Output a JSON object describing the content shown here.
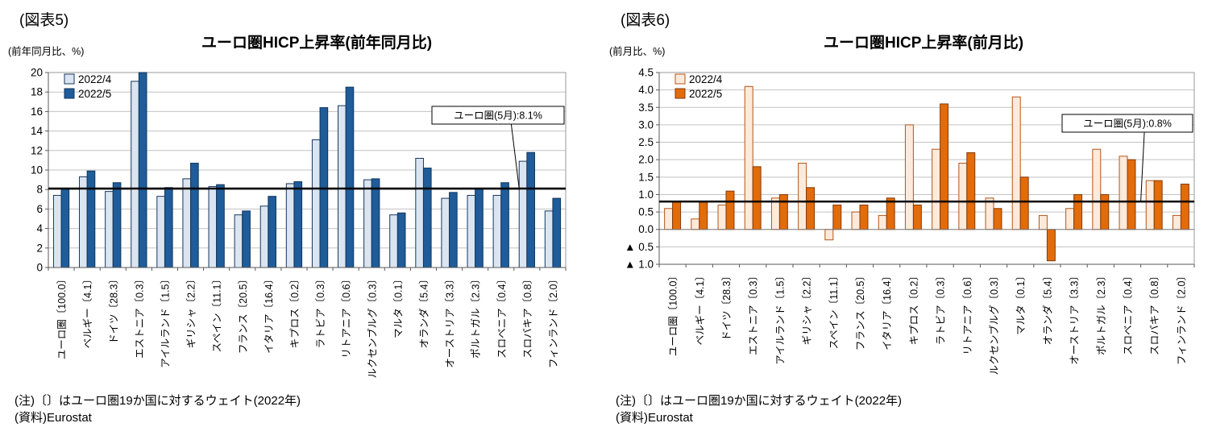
{
  "page": {
    "background": "#ffffff"
  },
  "chart_data": [
    {
      "type": "bar",
      "figure_label": "(図表5)",
      "title": "ユーロ圏HICP上昇率(前年同月比)",
      "ylabel_unit": "(前年同月比、%)",
      "xlabel": "",
      "grid": true,
      "legend_position": "top-left",
      "categories": [
        "ユーロ圏〔100.0〕",
        "ベルギー〔4.1〕",
        "ドイツ〔28.3〕",
        "エストニア〔0.3〕",
        "アイルランド〔1.5〕",
        "ギリシャ〔2.2〕",
        "スペイン〔11.1〕",
        "フランス〔20.5〕",
        "イタリア〔16.4〕",
        "キプロス〔0.2〕",
        "ラトビア〔0.3〕",
        "リトアニア〔0.6〕",
        "ルクセンブルグ〔0.3〕",
        "マルタ〔0.1〕",
        "オランダ〔5.4〕",
        "オーストリア〔3.3〕",
        "ポルトガル〔2.3〕",
        "スロベニア〔0.4〕",
        "スロバキア〔0.8〕",
        "フィンランド〔2.0〕"
      ],
      "series": [
        {
          "name": "2022/4",
          "color": "#dbe5f1",
          "border": "#17375e",
          "values": [
            7.4,
            9.3,
            7.8,
            19.1,
            7.3,
            9.1,
            8.3,
            5.4,
            6.3,
            8.6,
            13.1,
            16.6,
            9.0,
            5.4,
            11.2,
            7.1,
            7.4,
            7.4,
            10.9,
            5.8
          ]
        },
        {
          "name": "2022/5",
          "color": "#1f5c99",
          "border": "#10365c",
          "values": [
            8.1,
            9.9,
            8.7,
            20.1,
            8.2,
            10.7,
            8.5,
            5.8,
            7.3,
            8.8,
            16.4,
            18.5,
            9.1,
            5.6,
            10.2,
            7.7,
            8.1,
            8.7,
            11.8,
            7.1
          ]
        }
      ],
      "ylim": [
        0,
        20
      ],
      "ytick_step": 2,
      "reference_line": {
        "value": 8.1,
        "color": "#000000"
      },
      "annotation": {
        "text": "ユーロ圏(5月):8.1%"
      },
      "notes": [
        "(注)〔〕はユーロ圏19か国に対するウェイト(2022年)",
        "(資料)Eurostat"
      ]
    },
    {
      "type": "bar",
      "figure_label": "(図表6)",
      "title": "ユーロ圏HICP上昇率(前月比)",
      "ylabel_unit": "(前月比、%)",
      "xlabel": "",
      "grid": true,
      "legend_position": "top-left",
      "categories": [
        "ユーロ圏〔100.0〕",
        "ベルギー〔4.1〕",
        "ドイツ〔28.3〕",
        "エストニア〔0.3〕",
        "アイルランド〔1.5〕",
        "ギリシャ〔2.2〕",
        "スペイン〔11.1〕",
        "フランス〔20.5〕",
        "イタリア〔16.4〕",
        "キプロス〔0.2〕",
        "ラトビア〔0.3〕",
        "リトアニア〔0.6〕",
        "ルクセンブルグ〔0.3〕",
        "マルタ〔0.1〕",
        "オランダ〔5.4〕",
        "オーストリア〔3.3〕",
        "ポルトガル〔2.3〕",
        "スロベニア〔0.4〕",
        "スロバキア〔0.8〕",
        "フィンランド〔2.0〕"
      ],
      "series": [
        {
          "name": "2022/4",
          "color": "#fdeada",
          "border": "#b3561a",
          "values": [
            0.6,
            0.3,
            0.7,
            4.1,
            0.9,
            1.9,
            -0.3,
            0.5,
            0.4,
            3.0,
            2.3,
            1.9,
            0.9,
            3.8,
            0.4,
            0.6,
            2.3,
            2.1,
            1.4,
            0.4
          ]
        },
        {
          "name": "2022/5",
          "color": "#e26b0a",
          "border": "#843c0c",
          "values": [
            0.8,
            0.8,
            1.1,
            1.8,
            1.0,
            1.2,
            0.7,
            0.7,
            0.9,
            0.7,
            3.6,
            2.2,
            0.6,
            1.5,
            -0.9,
            1.0,
            1.0,
            2.0,
            1.4,
            1.3
          ]
        }
      ],
      "ylim": [
        -1.0,
        4.5
      ],
      "ytick_step": 0.5,
      "reference_line": {
        "value": 0.8,
        "color": "#000000"
      },
      "annotation": {
        "text": "ユーロ圏(5月):0.8%"
      },
      "notes": [
        "(注)〔〕はユーロ圏19か国に対するウェイト(2022年)",
        "(資料)Eurostat"
      ]
    }
  ]
}
